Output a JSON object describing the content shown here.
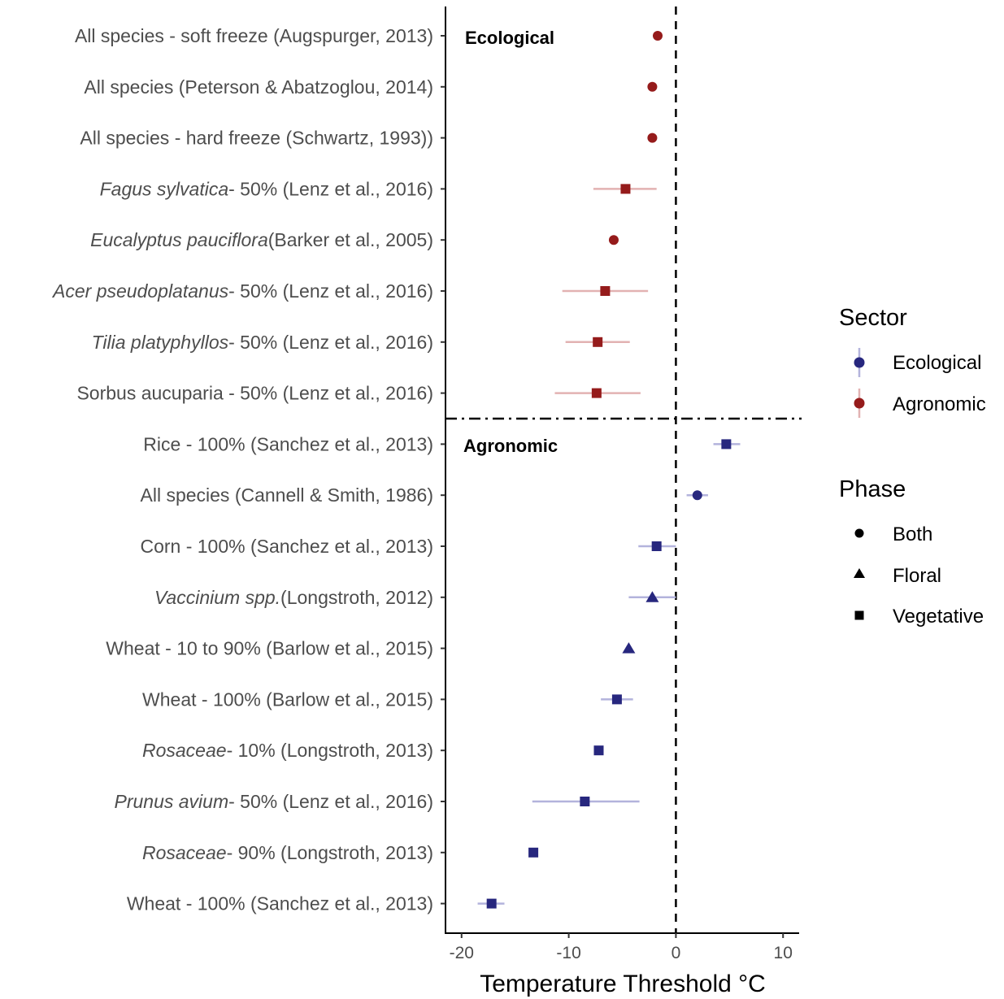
{
  "chart_data": {
    "type": "scatter",
    "title": "",
    "xlabel": "Temperature Threshold °C",
    "ylabel": "",
    "xlim": [
      -21.5,
      11.5
    ],
    "xticks": [
      -20,
      -10,
      0,
      10
    ],
    "xtick_labels": [
      "-20",
      "-10",
      "0",
      "10"
    ],
    "vline_x": 0,
    "panel_labels": [
      "Ecological",
      "Agronomic"
    ],
    "legend": {
      "placement": "right",
      "sector_title": "Sector",
      "sector_entries": [
        {
          "label": "Ecological",
          "color": "#27277e"
        },
        {
          "label": "Agronomic",
          "color": "#951b1b"
        }
      ],
      "phase_title": "Phase",
      "phase_entries": [
        {
          "label": "Both",
          "shape": "circle"
        },
        {
          "label": "Floral",
          "shape": "triangle"
        },
        {
          "label": "Vegetative",
          "shape": "square"
        }
      ]
    },
    "colors": {
      "ecological": "#27277e",
      "agronomic": "#951b1b",
      "ecological_light": "#b3b3dc",
      "agronomic_light": "#e2b2b2"
    },
    "rows": [
      {
        "label_italic": "",
        "label": "All species - soft freeze (Augspurger, 2013)",
        "sector": "Agronomic",
        "phase": "Both",
        "value": -1.7,
        "xmin": null,
        "xmax": null
      },
      {
        "label_italic": "",
        "label": "All species (Peterson & Abatzoglou, 2014)",
        "sector": "Agronomic",
        "phase": "Both",
        "value": -2.2,
        "xmin": null,
        "xmax": null
      },
      {
        "label_italic": "",
        "label": "All species - hard freeze (Schwartz, 1993))",
        "sector": "Agronomic",
        "phase": "Both",
        "value": -2.2,
        "xmin": null,
        "xmax": null
      },
      {
        "label_italic": "Fagus sylvatica",
        "label": "- 50% (Lenz et al., 2016)",
        "sector": "Agronomic",
        "phase": "Vegetative",
        "value": -4.7,
        "xmin": -7.7,
        "xmax": -1.8
      },
      {
        "label_italic": "Eucalyptus pauciflora",
        "label": "(Barker et al., 2005)",
        "sector": "Agronomic",
        "phase": "Both",
        "value": -5.8,
        "xmin": null,
        "xmax": null
      },
      {
        "label_italic": "Acer pseudoplatanus",
        "label": "- 50% (Lenz et al., 2016)",
        "sector": "Agronomic",
        "phase": "Vegetative",
        "value": -6.6,
        "xmin": -10.6,
        "xmax": -2.6
      },
      {
        "label_italic": "Tilia platyphyllos",
        "label": "- 50% (Lenz et al., 2016)",
        "sector": "Agronomic",
        "phase": "Vegetative",
        "value": -7.3,
        "xmin": -10.3,
        "xmax": -4.3
      },
      {
        "label_italic": "",
        "label": "Sorbus aucuparia - 50% (Lenz et al., 2016)",
        "sector": "Agronomic",
        "phase": "Vegetative",
        "value": -7.4,
        "xmin": -11.3,
        "xmax": -3.3
      },
      {
        "label_italic": "",
        "label": "Rice - 100% (Sanchez et al., 2013)",
        "sector": "Ecological",
        "phase": "Vegetative",
        "value": 4.7,
        "xmin": 3.5,
        "xmax": 6.0
      },
      {
        "label_italic": "",
        "label": "All species (Cannell & Smith, 1986)",
        "sector": "Ecological",
        "phase": "Both",
        "value": 2.0,
        "xmin": 1.0,
        "xmax": 3.0
      },
      {
        "label_italic": "",
        "label": "Corn - 100% (Sanchez et al., 2013)",
        "sector": "Ecological",
        "phase": "Vegetative",
        "value": -1.8,
        "xmin": -3.5,
        "xmax": 0.0
      },
      {
        "label_italic": "Vaccinium spp.",
        "label": "(Longstroth, 2012)",
        "sector": "Ecological",
        "phase": "Floral",
        "value": -2.2,
        "xmin": -4.4,
        "xmax": 0.0
      },
      {
        "label_italic": "",
        "label": "Wheat - 10 to 90% (Barlow et al., 2015)",
        "sector": "Ecological",
        "phase": "Floral",
        "value": -4.4,
        "xmin": null,
        "xmax": null
      },
      {
        "label_italic": "",
        "label": "Wheat - 100% (Barlow et al., 2015)",
        "sector": "Ecological",
        "phase": "Vegetative",
        "value": -5.5,
        "xmin": -7.0,
        "xmax": -4.0
      },
      {
        "label_italic": "Rosaceae",
        "label": "- 10% (Longstroth, 2013)",
        "sector": "Ecological",
        "phase": "Vegetative",
        "value": -7.2,
        "xmin": null,
        "xmax": null
      },
      {
        "label_italic": "Prunus avium",
        "label": "- 50% (Lenz et al., 2016)",
        "sector": "Ecological",
        "phase": "Vegetative",
        "value": -8.5,
        "xmin": -13.4,
        "xmax": -3.4
      },
      {
        "label_italic": "Rosaceae",
        "label": "- 90% (Longstroth, 2013)",
        "sector": "Ecological",
        "phase": "Vegetative",
        "value": -13.3,
        "xmin": null,
        "xmax": null
      },
      {
        "label_italic": "",
        "label": "Wheat - 100% (Sanchez et al., 2013)",
        "sector": "Ecological",
        "phase": "Vegetative",
        "value": -17.2,
        "xmin": -18.5,
        "xmax": -16.0
      }
    ]
  }
}
